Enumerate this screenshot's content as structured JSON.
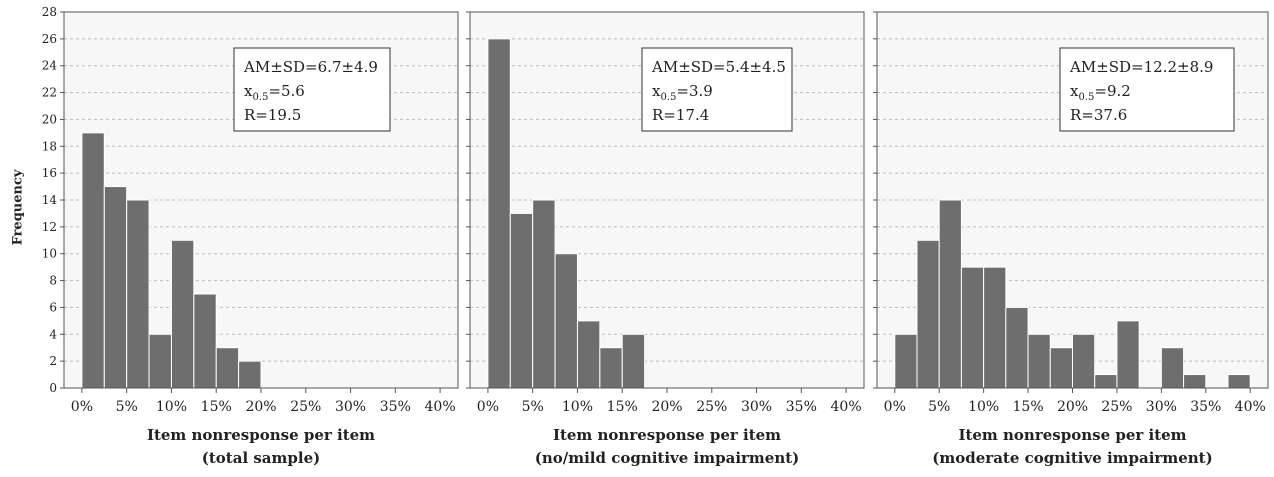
{
  "chart_data": [
    {
      "type": "bar",
      "ylabel": "Frequency",
      "xlabel": [
        "Item nonresponse per item",
        "(total sample)"
      ],
      "x_ticks": [
        "0%",
        "5%",
        "10%",
        "15%",
        "20%",
        "25%",
        "30%",
        "35%",
        "40%"
      ],
      "y_ticks": [
        "0",
        "2",
        "4",
        "6",
        "8",
        "10",
        "12",
        "14",
        "16",
        "18",
        "20",
        "22",
        "24",
        "26",
        "28"
      ],
      "ylim": [
        0,
        28
      ],
      "xlim": [
        -2,
        42
      ],
      "bin_width": 2.5,
      "bins": [
        {
          "start": 0,
          "value": 19
        },
        {
          "start": 2.5,
          "value": 15
        },
        {
          "start": 5,
          "value": 14
        },
        {
          "start": 7.5,
          "value": 4
        },
        {
          "start": 10,
          "value": 11
        },
        {
          "start": 12.5,
          "value": 7
        },
        {
          "start": 15,
          "value": 3
        },
        {
          "start": 17.5,
          "value": 2
        }
      ],
      "annotation": {
        "lines": [
          "AM±SD=6.7±4.9",
          "x0.5=5.6",
          "R=19.5"
        ],
        "am": "AM±SD=6.7±4.9",
        "x_base": "x",
        "x_sub": "0.5",
        "x_val": "=5.6",
        "r": "R=19.5"
      },
      "grid": true,
      "bar_color": "#6e6e6e"
    },
    {
      "type": "bar",
      "ylabel": "",
      "xlabel": [
        "Item nonresponse per item",
        "(no/mild cognitive impairment)"
      ],
      "x_ticks": [
        "0%",
        "5%",
        "10%",
        "15%",
        "20%",
        "25%",
        "30%",
        "35%",
        "40%"
      ],
      "y_ticks": [],
      "ylim": [
        0,
        28
      ],
      "xlim": [
        -2,
        42
      ],
      "bin_width": 2.5,
      "bins": [
        {
          "start": 0,
          "value": 26
        },
        {
          "start": 2.5,
          "value": 13
        },
        {
          "start": 5,
          "value": 14
        },
        {
          "start": 7.5,
          "value": 10
        },
        {
          "start": 10,
          "value": 5
        },
        {
          "start": 12.5,
          "value": 3
        },
        {
          "start": 15,
          "value": 4
        }
      ],
      "annotation": {
        "lines": [
          "AM±SD=5.4±4.5",
          "x0.5=3.9",
          "R=17.4"
        ],
        "am": "AM±SD=5.4±4.5",
        "x_base": "x",
        "x_sub": "0.5",
        "x_val": "=3.9",
        "r": "R=17.4"
      },
      "grid": true,
      "bar_color": "#6e6e6e"
    },
    {
      "type": "bar",
      "ylabel": "",
      "xlabel": [
        "Item nonresponse per item",
        "(moderate cognitive impairment)"
      ],
      "x_ticks": [
        "0%",
        "5%",
        "10%",
        "15%",
        "20%",
        "25%",
        "30%",
        "35%",
        "40%"
      ],
      "y_ticks": [],
      "ylim": [
        0,
        28
      ],
      "xlim": [
        -2,
        42
      ],
      "bin_width": 2.5,
      "bins": [
        {
          "start": 0,
          "value": 4
        },
        {
          "start": 2.5,
          "value": 11
        },
        {
          "start": 5,
          "value": 14
        },
        {
          "start": 7.5,
          "value": 9
        },
        {
          "start": 10,
          "value": 9
        },
        {
          "start": 12.5,
          "value": 6
        },
        {
          "start": 15,
          "value": 4
        },
        {
          "start": 17.5,
          "value": 3
        },
        {
          "start": 20,
          "value": 4
        },
        {
          "start": 22.5,
          "value": 1
        },
        {
          "start": 25,
          "value": 5
        },
        {
          "start": 30,
          "value": 3
        },
        {
          "start": 32.5,
          "value": 1
        },
        {
          "start": 37.5,
          "value": 1
        }
      ],
      "annotation": {
        "lines": [
          "AM±SD=12.2±8.9",
          "x0.5=9.2",
          "R=37.6"
        ],
        "am": "AM±SD=12.2±8.9",
        "x_base": "x",
        "x_sub": "0.5",
        "x_val": "=9.2",
        "r": "R=37.6"
      },
      "grid": true,
      "bar_color": "#6e6e6e"
    }
  ]
}
